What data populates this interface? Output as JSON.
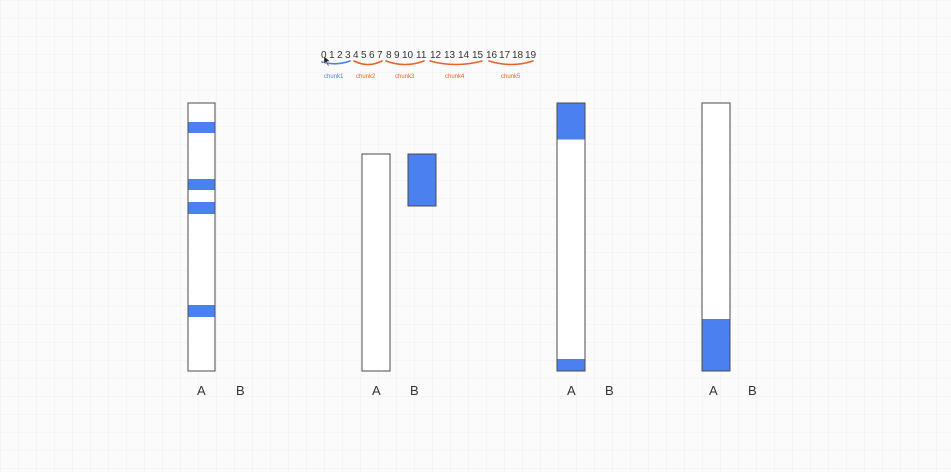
{
  "colors": {
    "fill": "#4a80f0",
    "outline": "#4b4b4b",
    "chunk_first": "#4a80f0",
    "chunk_other": "#e8632a"
  },
  "indices": [
    "0",
    "1",
    "2",
    "3",
    "4",
    "5",
    "6",
    "7",
    "8",
    "9",
    "10",
    "11",
    "12",
    "13",
    "14",
    "15",
    "16",
    "17",
    "18",
    "19"
  ],
  "chunks": [
    {
      "label": "chunk1",
      "color": "#4a80f0"
    },
    {
      "label": "chunk2",
      "color": "#e8632a"
    },
    {
      "label": "chunk3",
      "color": "#e8632a"
    },
    {
      "label": "chunk4",
      "color": "#e8632a"
    },
    {
      "label": "chunk5",
      "color": "#e8632a"
    }
  ],
  "groups": [
    {
      "a": "A",
      "b": "B"
    },
    {
      "a": "A",
      "b": "B"
    },
    {
      "a": "A",
      "b": "B"
    },
    {
      "a": "A",
      "b": "B"
    }
  ]
}
